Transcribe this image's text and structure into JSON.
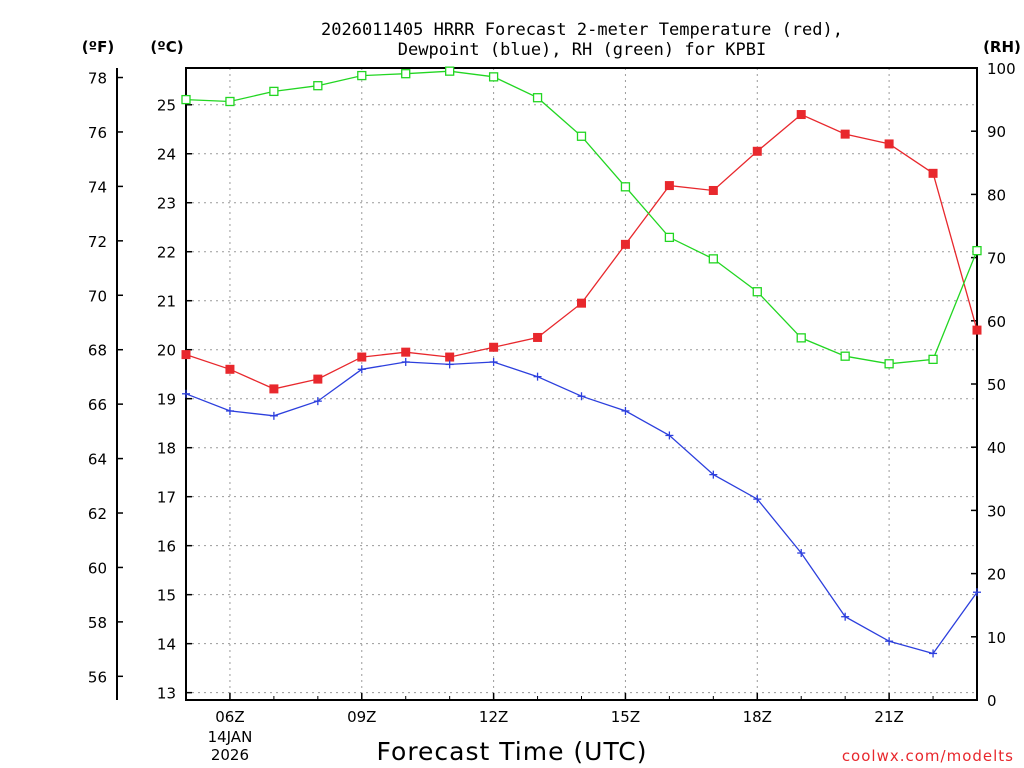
{
  "chart_data": {
    "type": "line",
    "title_line1": "2026011405 HRRR Forecast 2-meter Temperature (red),",
    "title_line2": "Dewpoint (blue), RH (green) for KPBI",
    "xlabel": "Forecast Time (UTC)",
    "units": {
      "fahrenheit": "(ºF)",
      "celsius": "(ºC)",
      "rh": "(RH)"
    },
    "x_hours": [
      5,
      6,
      7,
      8,
      9,
      10,
      11,
      12,
      13,
      14,
      15,
      16,
      17,
      18,
      19,
      20,
      21,
      22,
      23
    ],
    "xlim": [
      5,
      23
    ],
    "x_ticks": [
      {
        "hour": 6,
        "label": "06Z"
      },
      {
        "hour": 9,
        "label": "09Z"
      },
      {
        "hour": 12,
        "label": "12Z"
      },
      {
        "hour": 15,
        "label": "15Z"
      },
      {
        "hour": 18,
        "label": "18Z"
      },
      {
        "hour": 21,
        "label": "21Z"
      }
    ],
    "date_label": {
      "hour": 6,
      "line1": "14JAN",
      "line2": "2026"
    },
    "celsius_axis": {
      "range": [
        12.85,
        25.75
      ],
      "ticks": [
        13,
        14,
        15,
        16,
        17,
        18,
        19,
        20,
        21,
        22,
        23,
        24,
        25
      ]
    },
    "fahrenheit_axis": {
      "ticks": [
        56,
        58,
        60,
        62,
        64,
        66,
        68,
        70,
        72,
        74,
        76,
        78
      ]
    },
    "rh_axis": {
      "range": [
        0,
        100
      ],
      "ticks": [
        0,
        10,
        20,
        30,
        40,
        50,
        60,
        70,
        80,
        90,
        100
      ]
    },
    "series": [
      {
        "name": "Temperature",
        "axis": "celsius",
        "color": "#e8282d",
        "marker": "filled-square",
        "values": [
          19.9,
          19.6,
          19.2,
          19.4,
          19.85,
          19.95,
          19.85,
          20.05,
          20.25,
          20.95,
          22.15,
          23.35,
          23.25,
          24.05,
          24.8,
          24.4,
          24.2,
          23.6,
          20.4
        ]
      },
      {
        "name": "Dewpoint",
        "axis": "celsius",
        "color": "#2c3fdd",
        "marker": "plus",
        "values": [
          19.1,
          18.75,
          18.65,
          18.95,
          19.6,
          19.75,
          19.7,
          19.75,
          19.45,
          19.05,
          18.75,
          18.25,
          17.45,
          16.95,
          15.85,
          14.55,
          14.05,
          13.8,
          15.05
        ]
      },
      {
        "name": "RH",
        "axis": "rh",
        "color": "#22d622",
        "marker": "open-square",
        "values": [
          95,
          94.7,
          96.3,
          97.2,
          98.8,
          99.1,
          99.5,
          98.6,
          95.3,
          89.2,
          81.2,
          73.2,
          69.8,
          64.6,
          57.3,
          54.4,
          53.2,
          53.9,
          71.1
        ]
      }
    ]
  },
  "credit": "coolwx.com/modelts"
}
